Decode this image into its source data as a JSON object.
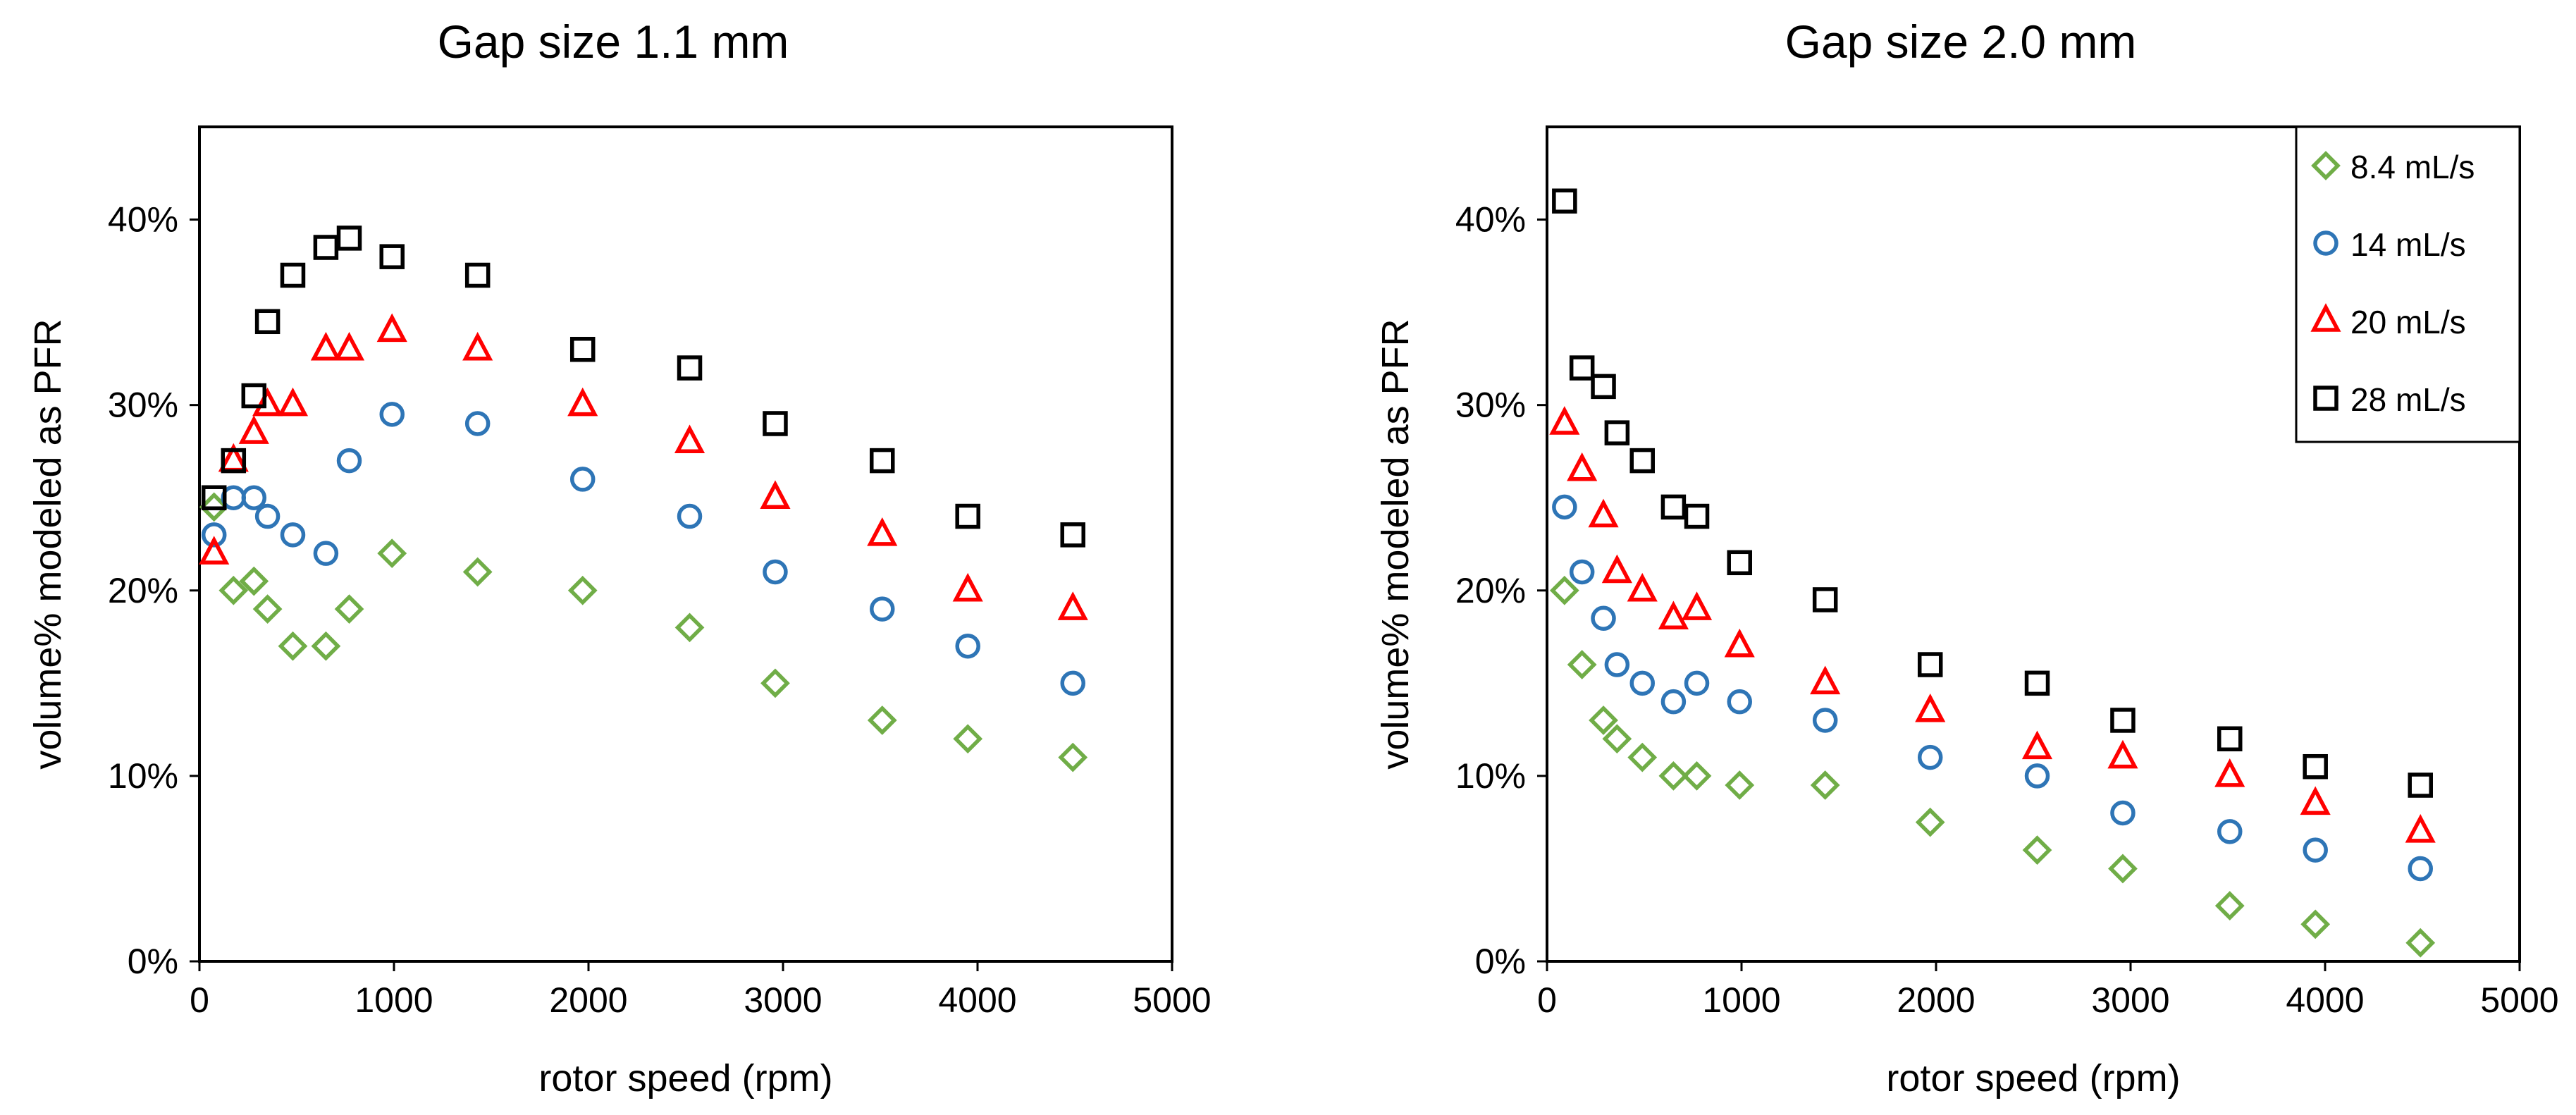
{
  "chart_data": [
    {
      "type": "scatter",
      "title": "Gap size 1.1 mm",
      "xlabel": "rotor speed (rpm)",
      "ylabel": "volume% modeled as PFR",
      "xlim": [
        0,
        5000
      ],
      "ylim": [
        0,
        0.45
      ],
      "xticks": [
        0,
        1000,
        2000,
        3000,
        4000,
        5000
      ],
      "xtick_labels": [
        "0",
        "1000",
        "2000",
        "3000",
        "4000",
        "5000"
      ],
      "yticks": [
        0,
        0.1,
        0.2,
        0.3,
        0.4
      ],
      "ytick_labels": [
        "0%",
        "10%",
        "20%",
        "30%",
        "40%"
      ],
      "grid": false,
      "legend": null,
      "series": [
        {
          "name": "8.4 mL/s",
          "marker": "diamond",
          "color": "#70AD47",
          "x": [
            75,
            175,
            280,
            350,
            480,
            650,
            770,
            990,
            1430,
            1970,
            2520,
            2960,
            3510,
            3950,
            4490
          ],
          "y": [
            0.245,
            0.2,
            0.205,
            0.19,
            0.17,
            0.17,
            0.19,
            0.22,
            0.21,
            0.2,
            0.18,
            0.15,
            0.13,
            0.12,
            0.11
          ]
        },
        {
          "name": "14 mL/s",
          "marker": "circle",
          "color": "#2E75B6",
          "x": [
            75,
            175,
            280,
            350,
            480,
            650,
            770,
            990,
            1430,
            1970,
            2520,
            2960,
            3510,
            3950,
            4490
          ],
          "y": [
            0.23,
            0.25,
            0.25,
            0.24,
            0.23,
            0.22,
            0.27,
            0.295,
            0.29,
            0.26,
            0.24,
            0.21,
            0.19,
            0.17,
            0.15
          ]
        },
        {
          "name": "20 mL/s",
          "marker": "triangle",
          "color": "#FF0000",
          "x": [
            75,
            175,
            280,
            350,
            480,
            650,
            770,
            990,
            1430,
            1970,
            2520,
            2960,
            3510,
            3950,
            4490
          ],
          "y": [
            0.22,
            0.27,
            0.285,
            0.3,
            0.3,
            0.33,
            0.33,
            0.34,
            0.33,
            0.3,
            0.28,
            0.25,
            0.23,
            0.2,
            0.19
          ]
        },
        {
          "name": "28 mL/s",
          "marker": "square",
          "color": "#000000",
          "x": [
            75,
            175,
            280,
            350,
            480,
            650,
            770,
            990,
            1430,
            1970,
            2520,
            2960,
            3510,
            3950,
            4490
          ],
          "y": [
            0.25,
            0.27,
            0.305,
            0.345,
            0.37,
            0.385,
            0.39,
            0.38,
            0.37,
            0.33,
            0.32,
            0.29,
            0.27,
            0.24,
            0.23
          ]
        }
      ]
    },
    {
      "type": "scatter",
      "title": "Gap size 2.0 mm",
      "xlabel": "rotor speed (rpm)",
      "ylabel": "volume% modeled as PFR",
      "xlim": [
        0,
        5000
      ],
      "ylim": [
        0,
        0.45
      ],
      "xticks": [
        0,
        1000,
        2000,
        3000,
        4000,
        5000
      ],
      "xtick_labels": [
        "0",
        "1000",
        "2000",
        "3000",
        "4000",
        "5000"
      ],
      "yticks": [
        0,
        0.1,
        0.2,
        0.3,
        0.4
      ],
      "ytick_labels": [
        "0%",
        "10%",
        "20%",
        "30%",
        "40%"
      ],
      "grid": false,
      "legend": "top-right",
      "series": [
        {
          "name": "8.4 mL/s",
          "marker": "diamond",
          "color": "#70AD47",
          "x": [
            90,
            180,
            290,
            360,
            490,
            650,
            770,
            990,
            1430,
            1970,
            2520,
            2960,
            3510,
            3950,
            4490
          ],
          "y": [
            0.2,
            0.16,
            0.13,
            0.12,
            0.11,
            0.1,
            0.1,
            0.095,
            0.095,
            0.075,
            0.06,
            0.05,
            0.03,
            0.02,
            0.01
          ]
        },
        {
          "name": "14 mL/s",
          "marker": "circle",
          "color": "#2E75B6",
          "x": [
            90,
            180,
            290,
            360,
            490,
            650,
            770,
            990,
            1430,
            1970,
            2520,
            2960,
            3510,
            3950,
            4490
          ],
          "y": [
            0.245,
            0.21,
            0.185,
            0.16,
            0.15,
            0.14,
            0.15,
            0.14,
            0.13,
            0.11,
            0.1,
            0.08,
            0.07,
            0.06,
            0.05
          ]
        },
        {
          "name": "20 mL/s",
          "marker": "triangle",
          "color": "#FF0000",
          "x": [
            90,
            180,
            290,
            360,
            490,
            650,
            770,
            990,
            1430,
            1970,
            2520,
            2960,
            3510,
            3950,
            4490
          ],
          "y": [
            0.29,
            0.265,
            0.24,
            0.21,
            0.2,
            0.185,
            0.19,
            0.17,
            0.15,
            0.135,
            0.115,
            0.11,
            0.1,
            0.085,
            0.07
          ]
        },
        {
          "name": "28 mL/s",
          "marker": "square",
          "color": "#000000",
          "x": [
            90,
            180,
            290,
            360,
            490,
            650,
            770,
            990,
            1430,
            1970,
            2520,
            2960,
            3510,
            3950,
            4490
          ],
          "y": [
            0.41,
            0.32,
            0.31,
            0.285,
            0.27,
            0.245,
            0.24,
            0.215,
            0.195,
            0.16,
            0.15,
            0.13,
            0.12,
            0.105,
            0.095
          ]
        }
      ]
    }
  ]
}
